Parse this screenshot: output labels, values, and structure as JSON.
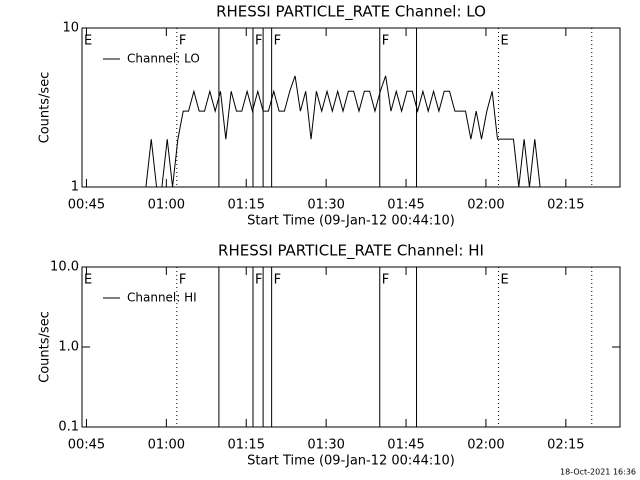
{
  "chart_data": [
    {
      "type": "line",
      "title": "RHESSI PARTICLE_RATE Channel: LO",
      "xlabel": "Start Time (09-Jan-12 00:44:10)",
      "ylabel": "Counts/sec",
      "log_y": true,
      "ylim": [
        1,
        10
      ],
      "yticks": [
        1,
        10
      ],
      "xlim": [
        0,
        101
      ],
      "xticks": [
        {
          "value": 0.833,
          "label": "00:45"
        },
        {
          "value": 15.833,
          "label": "01:00"
        },
        {
          "value": 30.833,
          "label": "01:15"
        },
        {
          "value": 45.833,
          "label": "01:30"
        },
        {
          "value": 60.833,
          "label": "01:45"
        },
        {
          "value": 75.833,
          "label": "02:00"
        },
        {
          "value": 90.833,
          "label": "02:15"
        }
      ],
      "legend": "upper left",
      "series": [
        {
          "name": "Channel: LO",
          "color": "#000000",
          "x": [
            12,
            13,
            14,
            15,
            16,
            17,
            18,
            19,
            20,
            21,
            22,
            23,
            24,
            25,
            26,
            27,
            28,
            29,
            30,
            31,
            32,
            33,
            34,
            35,
            36,
            37,
            38,
            39,
            40,
            41,
            42,
            43,
            44,
            45,
            46,
            47,
            48,
            49,
            50,
            51,
            52,
            53,
            54,
            55,
            56,
            57,
            58,
            59,
            60,
            61,
            62,
            63,
            64,
            65,
            66,
            67,
            68,
            69,
            70,
            71,
            72,
            73,
            74,
            75,
            76,
            77,
            78,
            79,
            80,
            81,
            82,
            83,
            84,
            85,
            86
          ],
          "values": [
            1,
            2,
            1,
            1,
            2,
            1,
            2,
            3,
            3,
            4,
            3,
            3,
            4,
            3,
            4,
            2,
            4,
            3,
            3,
            4,
            3,
            4,
            3,
            3,
            4,
            3,
            3,
            4,
            5,
            3,
            4,
            2,
            4,
            3,
            4,
            3,
            4,
            3,
            4,
            4,
            3,
            4,
            4,
            3,
            4,
            5,
            3,
            4,
            3,
            4,
            4,
            3,
            4,
            3,
            4,
            3,
            4,
            4,
            3,
            3,
            3,
            2,
            3,
            2,
            3,
            4,
            2,
            2,
            2,
            2,
            1,
            2,
            1,
            2,
            1
          ]
        }
      ],
      "flags": [
        {
          "x": 0,
          "style": "solid",
          "label": "E"
        },
        {
          "x": 17.8,
          "style": "dotted",
          "label": "F"
        },
        {
          "x": 25.7,
          "style": "solid"
        },
        {
          "x": 32.1,
          "style": "solid",
          "label": "F"
        },
        {
          "x": 34.0,
          "style": "solid"
        },
        {
          "x": 35.6,
          "style": "solid",
          "label": "F"
        },
        {
          "x": 55.9,
          "style": "solid",
          "label": "F"
        },
        {
          "x": 62.8,
          "style": "solid"
        },
        {
          "x": 78.2,
          "style": "dotted",
          "label": "E"
        },
        {
          "x": 95.7,
          "style": "dotted"
        }
      ]
    },
    {
      "type": "line",
      "title": "RHESSI PARTICLE_RATE Channel: HI",
      "xlabel": "Start Time (09-Jan-12 00:44:10)",
      "ylabel": "Counts/sec",
      "log_y": true,
      "ylim": [
        0.1,
        10
      ],
      "yticks": [
        0.1,
        {
          "value": 1,
          "label": "1.0"
        },
        {
          "value": 10,
          "label": "10.0"
        }
      ],
      "xlim": [
        0,
        101
      ],
      "xticks": [
        {
          "value": 0.833,
          "label": "00:45"
        },
        {
          "value": 15.833,
          "label": "01:00"
        },
        {
          "value": 30.833,
          "label": "01:15"
        },
        {
          "value": 45.833,
          "label": "01:30"
        },
        {
          "value": 60.833,
          "label": "01:45"
        },
        {
          "value": 75.833,
          "label": "02:00"
        },
        {
          "value": 90.833,
          "label": "02:15"
        }
      ],
      "legend": "upper left",
      "series": [
        {
          "name": "Channel: HI",
          "color": "#000000",
          "x": [],
          "values": []
        }
      ],
      "flags": [
        {
          "x": 0,
          "style": "solid",
          "label": "E"
        },
        {
          "x": 17.8,
          "style": "dotted",
          "label": "F"
        },
        {
          "x": 25.7,
          "style": "solid"
        },
        {
          "x": 32.1,
          "style": "solid",
          "label": "F"
        },
        {
          "x": 34.0,
          "style": "solid"
        },
        {
          "x": 35.6,
          "style": "solid",
          "label": "F"
        },
        {
          "x": 55.9,
          "style": "solid",
          "label": "F"
        },
        {
          "x": 62.8,
          "style": "solid"
        },
        {
          "x": 78.2,
          "style": "dotted",
          "label": "E"
        },
        {
          "x": 95.7,
          "style": "dotted"
        }
      ]
    }
  ],
  "footer": "18-Oct-2021 16:36"
}
